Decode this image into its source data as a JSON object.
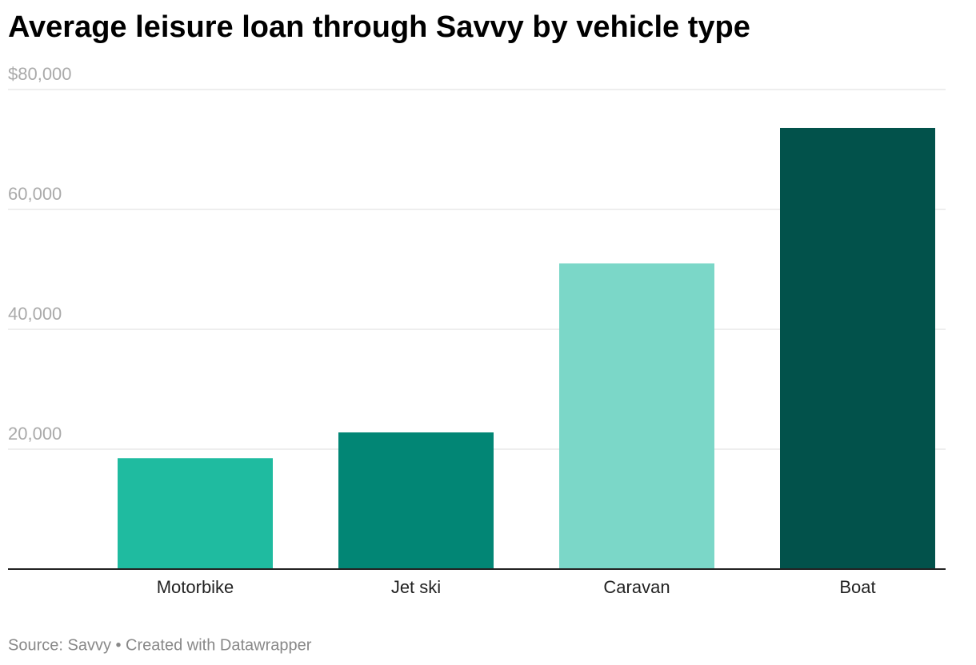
{
  "chart_data": {
    "type": "bar",
    "title": "Average leisure loan through Savvy by vehicle type",
    "categories": [
      "Motorbike",
      "Jet ski",
      "Caravan",
      "Boat"
    ],
    "values": [
      18500,
      22800,
      51000,
      73600
    ],
    "colors": [
      "#1fbba0",
      "#028675",
      "#7bd7c8",
      "#02524b"
    ],
    "ylim": [
      0,
      80000
    ],
    "yticks": [
      {
        "value": 20000,
        "label": "20,000"
      },
      {
        "value": 40000,
        "label": "40,000"
      },
      {
        "value": 60000,
        "label": "60,000"
      },
      {
        "value": 80000,
        "label": "$80,000"
      }
    ],
    "grid": true,
    "source": "Source: Savvy • Created with Datawrapper"
  }
}
